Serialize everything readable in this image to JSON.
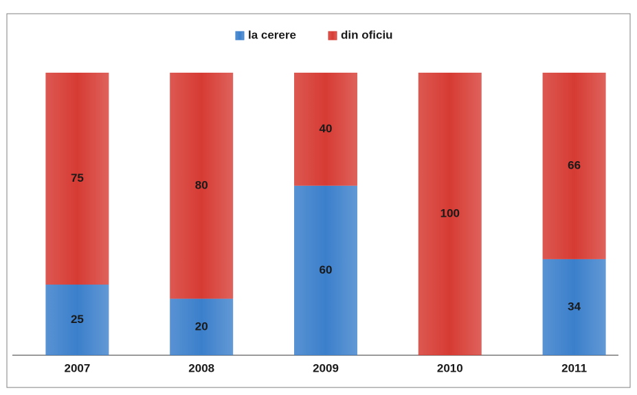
{
  "chart_data": {
    "type": "stacked_bar",
    "categories": [
      "2007",
      "2008",
      "2009",
      "2010",
      "2011"
    ],
    "series": [
      {
        "name": "la cerere",
        "color": "#3b7fcb",
        "values": [
          25,
          20,
          60,
          0,
          34
        ]
      },
      {
        "name": "din oficiu",
        "color": "#d63b33",
        "values": [
          75,
          80,
          40,
          100,
          66
        ]
      }
    ],
    "ylim": [
      0,
      100
    ]
  }
}
